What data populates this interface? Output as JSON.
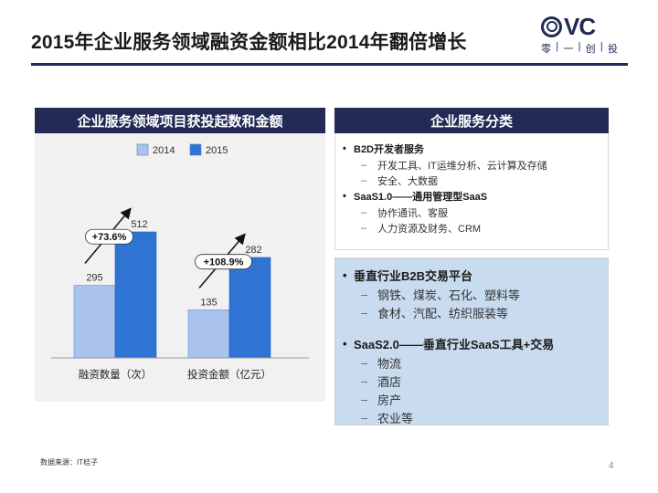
{
  "title": "2015年企业服务领域融资金额相比2014年翻倍增长",
  "logo": {
    "mark": "VC",
    "sub": [
      "零",
      "|",
      "一",
      "|",
      "创",
      "|",
      "投"
    ]
  },
  "left_panel": {
    "header": "企业服务领域项目获投起数和金额"
  },
  "right_panel": {
    "header": "企业服务分类",
    "top_box": [
      {
        "title": "B2D开发者服务",
        "subs": [
          "开发工具、IT运维分析、云计算及存储",
          "安全、大数据"
        ]
      },
      {
        "title": "SaaS1.0——通用管理型SaaS",
        "subs": [
          "协作通讯、客服",
          "人力资源及财务、CRM"
        ]
      }
    ],
    "bottom_box": [
      {
        "title": "垂直行业B2B交易平台",
        "subs": [
          "钢铁、煤炭、石化、塑料等",
          "食材、汽配、纺织服装等"
        ]
      },
      {
        "title": "SaaS2.0——垂直行业SaaS工具+交易",
        "subs": [
          "物流",
          "酒店",
          "房产",
          "农业等"
        ]
      }
    ]
  },
  "chart_data": {
    "type": "bar",
    "categories": [
      "融资数量（次）",
      "投资金额（亿元）"
    ],
    "series": [
      {
        "name": "2014",
        "values": [
          295,
          135
        ],
        "color": "#a9c3ee"
      },
      {
        "name": "2015",
        "values": [
          512,
          282
        ],
        "color": "#2f74d3"
      }
    ],
    "growth_labels": [
      "+73.6%",
      "+108.9%"
    ],
    "legend": "top-center"
  },
  "footnote": "数据来源：IT桔子",
  "page_number": "4"
}
